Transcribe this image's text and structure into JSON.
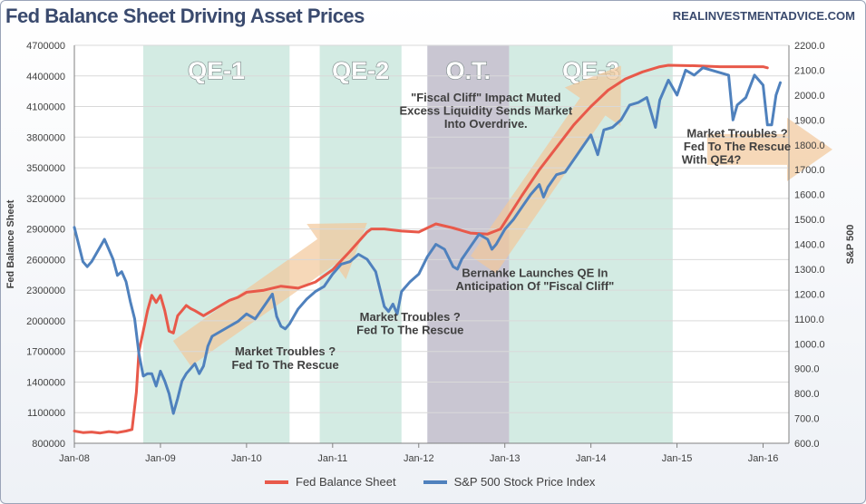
{
  "header": {
    "title": "Fed Balance Sheet Driving Asset Prices",
    "source": "REALINVESTMENTADVICE.COM"
  },
  "colors": {
    "fed": "#e8594a",
    "spx": "#4f81bd",
    "qe_band": "#d3ebe3",
    "ot_band": "#c9c6d2",
    "arrow": "#f2c79a",
    "annotation": "#404040"
  },
  "chart_data": {
    "type": "line",
    "title": "Fed Balance Sheet Driving Asset Prices",
    "xlabel": "",
    "ylabel": "Fed Balance Sheet",
    "y2label": "S&P 500",
    "xlim": [
      2008.0,
      2016.3
    ],
    "ylim": [
      800000,
      4700000
    ],
    "y2lim": [
      600,
      2200
    ],
    "x_ticks": [
      "Jan-08",
      "Jan-09",
      "Jan-10",
      "Jan-11",
      "Jan-12",
      "Jan-13",
      "Jan-14",
      "Jan-15",
      "Jan-16"
    ],
    "x_tick_values": [
      2008,
      2009,
      2010,
      2011,
      2012,
      2013,
      2014,
      2015,
      2016
    ],
    "y_ticks": [
      800000,
      1100000,
      1400000,
      1700000,
      2000000,
      2300000,
      2600000,
      2900000,
      3200000,
      3500000,
      3800000,
      4100000,
      4400000,
      4700000
    ],
    "y_tick_labels": [
      "800000",
      "1100000",
      "1400000",
      "1700000",
      "2000000",
      "2300000",
      "2600000",
      "2900000",
      "3200000",
      "3500000",
      "3800000",
      "4100000",
      "4400000",
      "4700000"
    ],
    "y2_ticks": [
      600,
      700,
      800,
      900,
      1000,
      1100,
      1200,
      1300,
      1400,
      1500,
      1600,
      1700,
      1800,
      1900,
      2000,
      2100,
      2200
    ],
    "y2_tick_labels": [
      "600.0",
      "700.0",
      "800.0",
      "900.0",
      "1000.0",
      "1100.0",
      "1200.0",
      "1300.0",
      "1400.0",
      "1500.0",
      "1600.0",
      "1700.0",
      "1800.0",
      "1900.0",
      "2000.0",
      "2100.0",
      "2200.0"
    ],
    "bands": [
      {
        "label": "QE-1",
        "start": 2008.8,
        "end": 2010.5,
        "kind": "qe"
      },
      {
        "label": "QE-2",
        "start": 2010.85,
        "end": 2011.8,
        "kind": "qe"
      },
      {
        "label": "O.T.",
        "start": 2012.1,
        "end": 2013.05,
        "kind": "ot"
      },
      {
        "label": "QE-3",
        "start": 2013.05,
        "end": 2014.95,
        "kind": "qe"
      }
    ],
    "series": [
      {
        "name": "Fed Balance Sheet",
        "axis": "left",
        "x": [
          2008.0,
          2008.1,
          2008.2,
          2008.3,
          2008.4,
          2008.5,
          2008.6,
          2008.67,
          2008.72,
          2008.75,
          2008.8,
          2008.85,
          2008.9,
          2008.95,
          2009.0,
          2009.05,
          2009.1,
          2009.15,
          2009.2,
          2009.25,
          2009.3,
          2009.35,
          2009.4,
          2009.5,
          2009.6,
          2009.7,
          2009.8,
          2009.9,
          2010.0,
          2010.2,
          2010.4,
          2010.6,
          2010.8,
          2011.0,
          2011.2,
          2011.4,
          2011.45,
          2011.6,
          2011.8,
          2012.0,
          2012.2,
          2012.4,
          2012.6,
          2012.8,
          2012.95,
          2013.2,
          2013.4,
          2013.6,
          2013.8,
          2014.0,
          2014.2,
          2014.4,
          2014.6,
          2014.8,
          2014.9,
          2015.2,
          2015.5,
          2015.8,
          2016.0,
          2016.05
        ],
        "values": [
          920000,
          905000,
          910000,
          900000,
          915000,
          905000,
          920000,
          935000,
          1300000,
          1700000,
          1900000,
          2100000,
          2250000,
          2180000,
          2250000,
          2100000,
          1900000,
          1880000,
          2050000,
          2100000,
          2150000,
          2120000,
          2100000,
          2050000,
          2100000,
          2150000,
          2200000,
          2230000,
          2280000,
          2300000,
          2340000,
          2320000,
          2380000,
          2500000,
          2680000,
          2870000,
          2900000,
          2900000,
          2880000,
          2870000,
          2950000,
          2910000,
          2860000,
          2850000,
          2900000,
          3230000,
          3480000,
          3700000,
          3920000,
          4100000,
          4260000,
          4370000,
          4440000,
          4490000,
          4505000,
          4500000,
          4490000,
          4490000,
          4490000,
          4480000
        ]
      },
      {
        "name": "S&P 500 Stock Price Index",
        "axis": "right",
        "x": [
          2008.0,
          2008.05,
          2008.1,
          2008.15,
          2008.2,
          2008.3,
          2008.35,
          2008.4,
          2008.45,
          2008.5,
          2008.55,
          2008.6,
          2008.65,
          2008.7,
          2008.75,
          2008.8,
          2008.85,
          2008.9,
          2008.95,
          2009.0,
          2009.05,
          2009.1,
          2009.15,
          2009.2,
          2009.25,
          2009.3,
          2009.35,
          2009.4,
          2009.45,
          2009.5,
          2009.55,
          2009.6,
          2009.7,
          2009.8,
          2009.9,
          2010.0,
          2010.1,
          2010.2,
          2010.3,
          2010.35,
          2010.4,
          2010.45,
          2010.5,
          2010.6,
          2010.7,
          2010.8,
          2010.9,
          2011.0,
          2011.1,
          2011.2,
          2011.3,
          2011.4,
          2011.5,
          2011.6,
          2011.65,
          2011.7,
          2011.75,
          2011.8,
          2011.9,
          2012.0,
          2012.1,
          2012.2,
          2012.3,
          2012.4,
          2012.45,
          2012.5,
          2012.6,
          2012.7,
          2012.8,
          2012.85,
          2012.9,
          2013.0,
          2013.1,
          2013.2,
          2013.3,
          2013.4,
          2013.45,
          2013.5,
          2013.6,
          2013.7,
          2013.8,
          2013.9,
          2014.0,
          2014.08,
          2014.15,
          2014.25,
          2014.35,
          2014.45,
          2014.55,
          2014.65,
          2014.75,
          2014.8,
          2014.9,
          2015.0,
          2015.1,
          2015.2,
          2015.3,
          2015.4,
          2015.5,
          2015.6,
          2015.65,
          2015.7,
          2015.8,
          2015.9,
          2016.0,
          2016.05,
          2016.1,
          2016.15,
          2016.2
        ],
        "values": [
          1468,
          1400,
          1330,
          1310,
          1330,
          1390,
          1420,
          1380,
          1340,
          1275,
          1290,
          1250,
          1170,
          1100,
          960,
          870,
          880,
          880,
          830,
          890,
          850,
          800,
          720,
          780,
          850,
          880,
          900,
          920,
          880,
          910,
          990,
          1030,
          1050,
          1070,
          1090,
          1120,
          1100,
          1150,
          1200,
          1110,
          1070,
          1060,
          1080,
          1140,
          1180,
          1210,
          1230,
          1280,
          1320,
          1330,
          1360,
          1340,
          1290,
          1150,
          1130,
          1160,
          1120,
          1210,
          1250,
          1280,
          1350,
          1400,
          1380,
          1310,
          1300,
          1340,
          1390,
          1440,
          1420,
          1380,
          1400,
          1460,
          1500,
          1550,
          1600,
          1640,
          1590,
          1630,
          1680,
          1690,
          1740,
          1790,
          1840,
          1760,
          1860,
          1870,
          1900,
          1960,
          1970,
          1990,
          1870,
          1980,
          2060,
          2000,
          2100,
          2080,
          2110,
          2100,
          2090,
          2080,
          1900,
          1960,
          1990,
          2080,
          2040,
          1880,
          1880,
          2000,
          2050
        ]
      }
    ],
    "annotations": [
      {
        "text": "Market Troubles ?",
        "x": 2010.45,
        "y": 1660000
      },
      {
        "text": "Fed To The Rescue",
        "x": 2010.45,
        "y": 1530000
      },
      {
        "text": "Market Troubles ?",
        "x": 2011.9,
        "y": 2000000
      },
      {
        "text": "Fed To The Rescue",
        "x": 2011.9,
        "y": 1870000
      },
      {
        "text": "\"Fiscal Cliff\" Impact Muted",
        "x": 2012.78,
        "y": 4150000
      },
      {
        "text": "Excess Liquidity Sends Market",
        "x": 2012.78,
        "y": 4020000
      },
      {
        "text": "Into Overdrive.",
        "x": 2012.78,
        "y": 3890000
      },
      {
        "text": "Bernanke Launches QE In",
        "x": 2013.35,
        "y": 2430000
      },
      {
        "text": "Anticipation Of \"Fiscal Cliff\"",
        "x": 2013.35,
        "y": 2300000
      },
      {
        "text": "Market Troubles ?",
        "x": 2015.7,
        "y": 3800000
      },
      {
        "text": "Fed To The Rescue",
        "x": 2015.7,
        "y": 3670000
      },
      {
        "text": "With QE4?",
        "x": 2015.4,
        "y": 3540000
      }
    ],
    "legend": [
      "Fed Balance Sheet",
      "S&P 500 Stock Price Index"
    ],
    "legend_position": "bottom"
  }
}
